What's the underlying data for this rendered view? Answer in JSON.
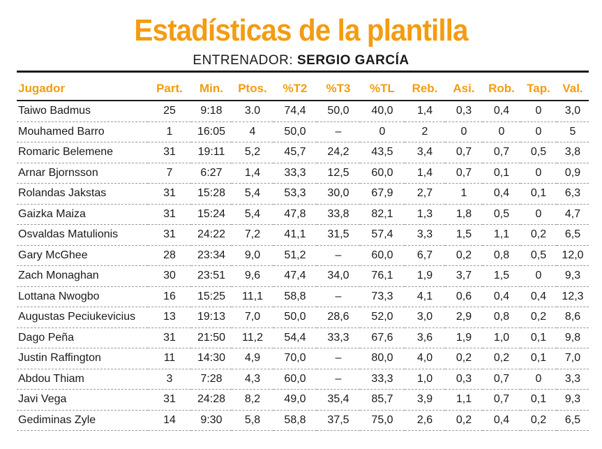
{
  "title": "Estadísticas de la plantilla",
  "subtitle": {
    "label": "ENTRENADOR:",
    "coach": "SERGIO GARCÍA"
  },
  "table": {
    "headers": [
      "Jugador",
      "Part.",
      "Min.",
      "Ptos.",
      "%T2",
      "%T3",
      "%TL",
      "Reb.",
      "Asi.",
      "Rob.",
      "Tap.",
      "Val."
    ],
    "rows": [
      [
        "Taiwo Badmus",
        "25",
        "9:18",
        "3.0",
        "74,4",
        "50,0",
        "40,0",
        "1,4",
        "0,3",
        "0,4",
        "0",
        "3,0"
      ],
      [
        "Mouhamed Barro",
        "1",
        "16:05",
        "4",
        "50,0",
        "–",
        "0",
        "2",
        "0",
        "0",
        "0",
        "5"
      ],
      [
        "Romaric Belemene",
        "31",
        "19:11",
        "5,2",
        "45,7",
        "24,2",
        "43,5",
        "3,4",
        "0,7",
        "0,7",
        "0,5",
        "3,8"
      ],
      [
        "Arnar Bjornsson",
        "7",
        "6:27",
        "1,4",
        "33,3",
        "12,5",
        "60,0",
        "1,4",
        "0,7",
        "0,1",
        "0",
        "0,9"
      ],
      [
        "Rolandas Jakstas",
        "31",
        "15:28",
        "5,4",
        "53,3",
        "30,0",
        "67,9",
        "2,7",
        "1",
        "0,4",
        "0,1",
        "6,3"
      ],
      [
        "Gaizka Maiza",
        "31",
        "15:24",
        "5,4",
        "47,8",
        "33,8",
        "82,1",
        "1,3",
        "1,8",
        "0,5",
        "0",
        "4,7"
      ],
      [
        "Osvaldas Matulionis",
        "31",
        "24:22",
        "7,2",
        "41,1",
        "31,5",
        "57,4",
        "3,3",
        "1,5",
        "1,1",
        "0,2",
        "6,5"
      ],
      [
        "Gary McGhee",
        "28",
        "23:34",
        "9,0",
        "51,2",
        "–",
        "60,0",
        "6,7",
        "0,2",
        "0,8",
        "0,5",
        "12,0"
      ],
      [
        "Zach Monaghan",
        "30",
        "23:51",
        "9,6",
        "47,4",
        "34,0",
        "76,1",
        "1,9",
        "3,7",
        "1,5",
        "0",
        "9,3"
      ],
      [
        "Lottana Nwogbo",
        "16",
        "15:25",
        "11,1",
        "58,8",
        "–",
        "73,3",
        "4,1",
        "0,6",
        "0,4",
        "0,4",
        "12,3"
      ],
      [
        "Augustas Peciukevicius",
        "13",
        "19:13",
        "7,0",
        "50,0",
        "28,6",
        "52,0",
        "3,0",
        "2,9",
        "0,8",
        "0,2",
        "8,6"
      ],
      [
        "Dago Peña",
        "31",
        "21:50",
        "11,2",
        "54,4",
        "33,3",
        "67,6",
        "3,6",
        "1,9",
        "1,0",
        "0,1",
        "9,8"
      ],
      [
        "Justin Raffington",
        "11",
        "14:30",
        "4,9",
        "70,0",
        "–",
        "80,0",
        "4,0",
        "0,2",
        "0,2",
        "0,1",
        "7,0"
      ],
      [
        "Abdou Thiam",
        "3",
        "7:28",
        "4,3",
        "60,0",
        "–",
        "33,3",
        "1,0",
        "0,3",
        "0,7",
        "0",
        "3,3"
      ],
      [
        "Javi Vega",
        "31",
        "24:28",
        "8,2",
        "49,0",
        "35,4",
        "85,7",
        "3,9",
        "1,1",
        "0,7",
        "0,1",
        "9,3"
      ],
      [
        "Gediminas Zyle",
        "14",
        "9:30",
        "5,8",
        "58,8",
        "37,5",
        "75,0",
        "2,6",
        "0,2",
        "0,4",
        "0,2",
        "6,5"
      ]
    ]
  },
  "colors": {
    "accent": "#f39c12",
    "text": "#1a1a1a"
  }
}
